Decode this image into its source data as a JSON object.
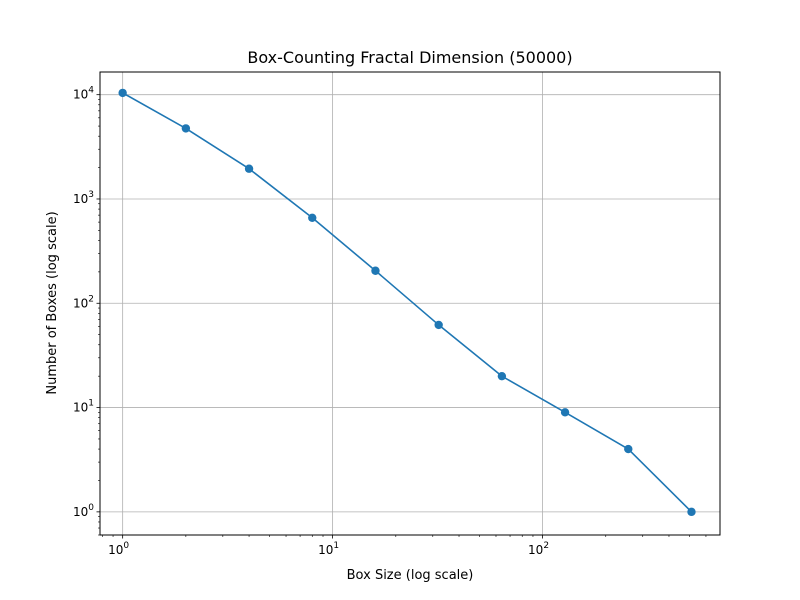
{
  "chart_data": {
    "type": "line",
    "title": "Box-Counting Fractal Dimension (50000)",
    "xlabel": "Box Size (log scale)",
    "ylabel": "Number of Boxes (log scale)",
    "xscale": "log",
    "yscale": "log",
    "xlim": [
      0.78,
      700
    ],
    "ylim": [
      0.6,
      16500
    ],
    "grid": true,
    "x_ticks": [
      {
        "value": 1,
        "base": "10",
        "exp": "0"
      },
      {
        "value": 10,
        "base": "10",
        "exp": "1"
      },
      {
        "value": 100,
        "base": "10",
        "exp": "2"
      }
    ],
    "y_ticks": [
      {
        "value": 1,
        "base": "10",
        "exp": "0"
      },
      {
        "value": 10,
        "base": "10",
        "exp": "1"
      },
      {
        "value": 100,
        "base": "10",
        "exp": "2"
      },
      {
        "value": 1000,
        "base": "10",
        "exp": "3"
      },
      {
        "value": 10000,
        "base": "10",
        "exp": "4"
      }
    ],
    "series": [
      {
        "color": "#1f77b4",
        "marker": "circle",
        "x": [
          1,
          2,
          4,
          8,
          16,
          32,
          64,
          128,
          256,
          512
        ],
        "y": [
          10400,
          4750,
          1950,
          660,
          205,
          62,
          20,
          9,
          4,
          1
        ]
      }
    ]
  }
}
